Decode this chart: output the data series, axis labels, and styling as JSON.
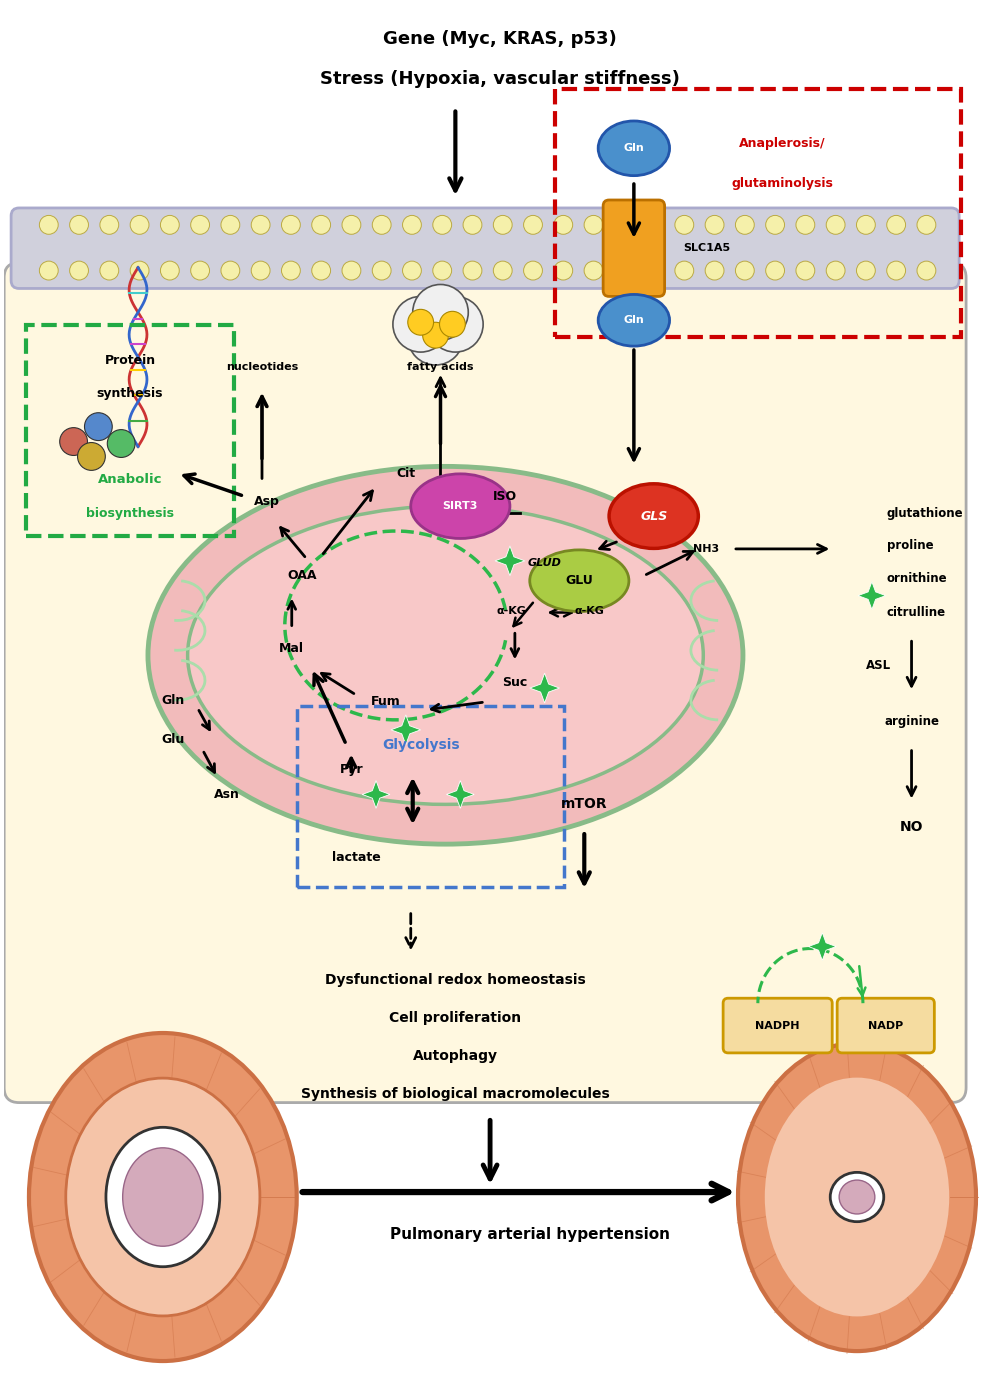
{
  "title_line1": "Gene (Myc, KRAS, p53)",
  "title_line2": "Stress (Hypoxia, vascular stiffness)",
  "green_star_color": "#2DB84B",
  "red_box_color": "#CC2200",
  "green_box_color": "#22AA44",
  "blue_box_color": "#4477CC",
  "bottom_text_lines": [
    "Dysfunctional redox homeostasis",
    "Cell proliferation",
    "Autophagy",
    "Synthesis of biological macromolecules"
  ],
  "bottom_arrow_text": "Pulmonary arterial hypertension"
}
